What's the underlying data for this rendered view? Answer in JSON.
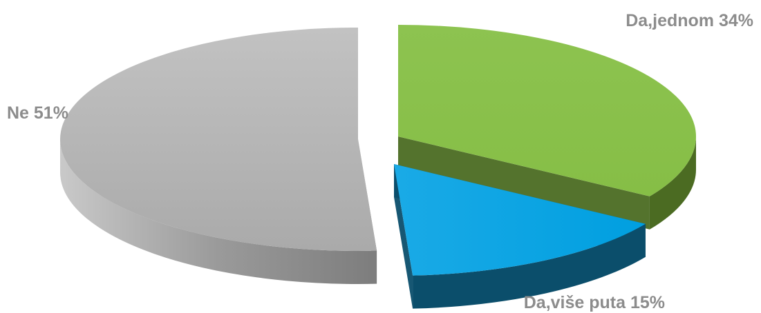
{
  "chart_data": {
    "type": "pie",
    "title": "",
    "slices": [
      {
        "label": "Da,jednom 34%",
        "value": 34,
        "color": "#8bc34a",
        "side_color": "#4a6a22"
      },
      {
        "label": "Da,više puta 15%",
        "value": 15,
        "color": "#00a6e3",
        "side_color": "#0a4d6a"
      },
      {
        "label": "Ne 51%",
        "value": 51,
        "color": "#b5b5b5",
        "side_color": "#8e8e8e"
      }
    ],
    "legend": "none",
    "style": "3d-exploded"
  }
}
